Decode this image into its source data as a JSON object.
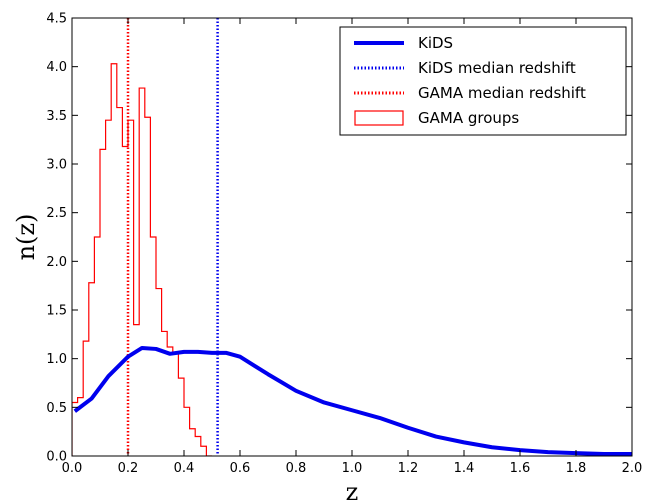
{
  "chart_data": {
    "type": "line",
    "title": "",
    "xlabel": "z",
    "ylabel": "n(z)",
    "xlim": [
      0.0,
      2.0
    ],
    "ylim": [
      0.0,
      4.5
    ],
    "x_ticks": [
      "0.0",
      "0.2",
      "0.4",
      "0.6",
      "0.8",
      "1.0",
      "1.2",
      "1.4",
      "1.6",
      "1.8",
      "2.0"
    ],
    "y_ticks": [
      "0.0",
      "0.5",
      "1.0",
      "1.5",
      "2.0",
      "2.5",
      "3.0",
      "3.5",
      "4.0",
      "4.5"
    ],
    "grid": false,
    "legend_position": "top-right",
    "series": [
      {
        "name": "KiDS",
        "kind": "line",
        "color": "#0000ee",
        "x": [
          0.01,
          0.07,
          0.13,
          0.2,
          0.25,
          0.3,
          0.35,
          0.4,
          0.45,
          0.5,
          0.55,
          0.6,
          0.7,
          0.8,
          0.9,
          1.0,
          1.1,
          1.2,
          1.3,
          1.4,
          1.5,
          1.6,
          1.7,
          1.8,
          1.9,
          2.0
        ],
        "y": [
          0.46,
          0.59,
          0.82,
          1.02,
          1.11,
          1.1,
          1.05,
          1.07,
          1.07,
          1.06,
          1.06,
          1.02,
          0.84,
          0.67,
          0.55,
          0.47,
          0.39,
          0.29,
          0.2,
          0.14,
          0.09,
          0.06,
          0.04,
          0.03,
          0.02,
          0.02
        ]
      },
      {
        "name": "KiDS median redshift",
        "kind": "vline",
        "color": "#0000ee",
        "x": 0.52
      },
      {
        "name": "GAMA median redshift",
        "kind": "vline",
        "color": "#ff0000",
        "x": 0.2
      },
      {
        "name": "GAMA groups",
        "kind": "step-histogram",
        "color": "#ff0000",
        "bin_edges": [
          0.0,
          0.02,
          0.04,
          0.06,
          0.08,
          0.1,
          0.12,
          0.14,
          0.16,
          0.18,
          0.2,
          0.22,
          0.24,
          0.26,
          0.28,
          0.3,
          0.32,
          0.34,
          0.36,
          0.38,
          0.4,
          0.42,
          0.44,
          0.46,
          0.48,
          0.5
        ],
        "values": [
          0.55,
          0.6,
          1.18,
          1.78,
          2.25,
          3.15,
          3.45,
          4.03,
          3.58,
          3.18,
          3.45,
          1.35,
          3.78,
          3.48,
          2.25,
          1.72,
          1.28,
          1.12,
          1.05,
          0.8,
          0.5,
          0.28,
          0.2,
          0.1,
          0.0
        ]
      }
    ],
    "legend": [
      {
        "label": "KiDS",
        "style": "solid",
        "color": "#0000ee"
      },
      {
        "label": "KiDS median redshift",
        "style": "dotted",
        "color": "#0000ee"
      },
      {
        "label": "GAMA median redshift",
        "style": "dotted",
        "color": "#ff0000"
      },
      {
        "label": "GAMA groups",
        "style": "box",
        "color": "#ff0000"
      }
    ]
  }
}
